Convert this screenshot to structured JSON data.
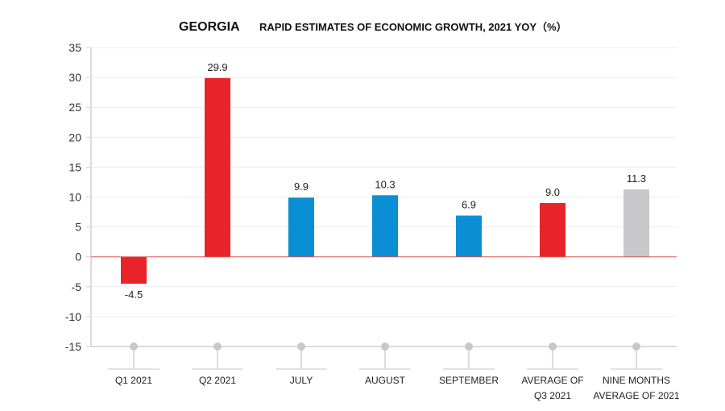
{
  "chart_data": {
    "type": "bar",
    "title": "GEORGIA",
    "subtitle": "RAPID ESTIMATES OF ECONOMIC GROWTH,  2021 YOY（%）",
    "xlabel": "",
    "ylabel": "",
    "ylim": [
      -15,
      35
    ],
    "yticks": [
      35,
      30,
      25,
      20,
      15,
      10,
      5,
      0,
      -5,
      -10,
      -15
    ],
    "grid": true,
    "categories": [
      [
        "Q1 2021"
      ],
      [
        "Q2 2021"
      ],
      [
        "JULY"
      ],
      [
        "AUGUST"
      ],
      [
        "SEPTEMBER"
      ],
      [
        "AVERAGE OF",
        "Q3 2021"
      ],
      [
        "NINE MONTHS",
        "AVERAGE OF 2021"
      ]
    ],
    "values": [
      -4.5,
      29.9,
      9.9,
      10.3,
      6.9,
      9.0,
      11.3
    ],
    "value_labels": [
      "-4.5",
      "29.9",
      "9.9",
      "10.3",
      "6.9",
      "9.0",
      "11.3"
    ],
    "bar_colors": [
      "#e8232a",
      "#e8232a",
      "#0a8fd4",
      "#0a8fd4",
      "#0a8fd4",
      "#e8232a",
      "#c8c8ca"
    ],
    "zero_line_color": "#d9534f"
  }
}
